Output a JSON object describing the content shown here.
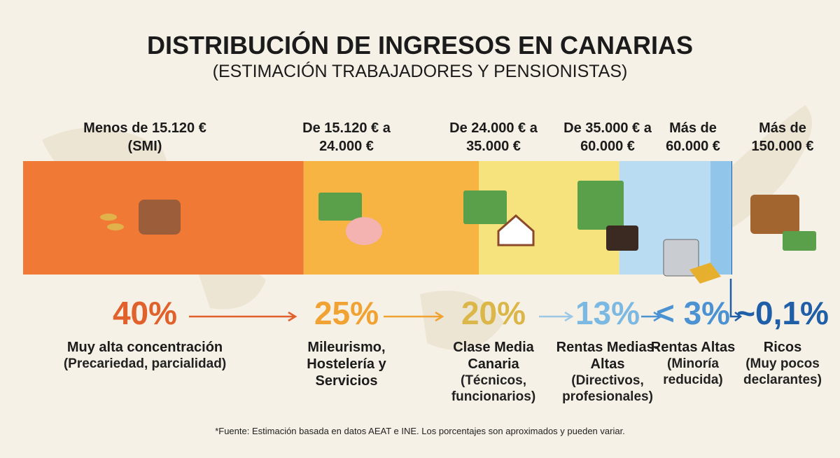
{
  "chart_data": {
    "type": "bar",
    "title": "DISTRIBUCIÓN DE INGRESOS EN CANARIAS",
    "subtitle": "(ESTIMACIÓN TRABAJADORES Y PENSIONISTAS)",
    "categories": [
      "Menos de 15.120 € (SMI)",
      "De 15.120 € a 24.000 €",
      "De 24.000 € a 35.000 €",
      "De 35.000 € a 60.000 €",
      "Más de 60.000 €",
      "Más de 150.000 €"
    ],
    "values": [
      40,
      25,
      20,
      13,
      3,
      0.1
    ],
    "value_labels": [
      "40%",
      "25%",
      "20%",
      "13%",
      "< 3%",
      "~0,1%"
    ],
    "colors": [
      "#f07a35",
      "#f8b443",
      "#f7e37e",
      "#b9dcf2",
      "#92c5ea",
      "#1f5fa8"
    ],
    "label_colors": [
      "#e0612b",
      "#f0a233",
      "#dbb649",
      "#7cb9e2",
      "#4a92d2",
      "#1f5fa8"
    ],
    "descriptions": [
      {
        "title": "Muy alta concentración",
        "note": "(Precariedad, parcialidad)"
      },
      {
        "title": "Mileurismo, Hostelería y Servicios"
      },
      {
        "title": "Clase Media Canaria",
        "note": "(Técnicos, funcionarios)"
      },
      {
        "title": "Rentas Medias-Altas",
        "note": "(Directivos, profesionales)"
      },
      {
        "title": "Rentas Altas",
        "note": "(Minoría reducida)"
      },
      {
        "title": "Ricos",
        "note": "(Muy pocos declarantes)"
      }
    ],
    "footnote": "*Fuente: Estimación basada en datos AEAT e INE. Los porcentajes son aproximados y pueden variar."
  }
}
